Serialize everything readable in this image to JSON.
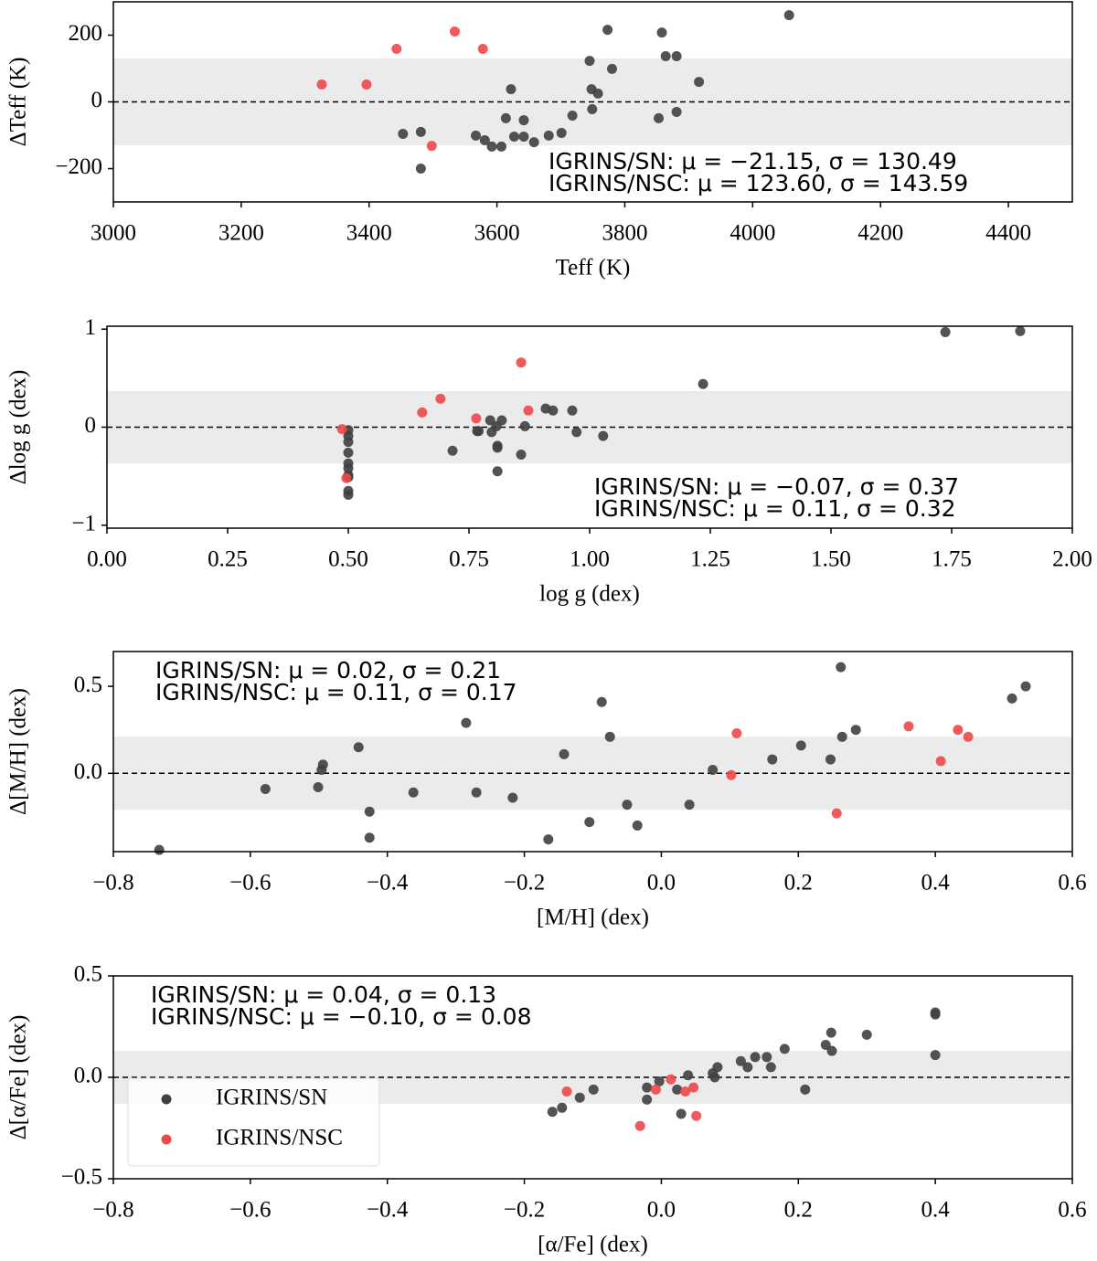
{
  "chart_data": [
    {
      "type": "scatter",
      "xlabel": "Teff (K)",
      "ylabel": "ΔTeff (K)",
      "xlim": [
        3000,
        4500
      ],
      "ylim": [
        -300,
        300
      ],
      "xticks": [
        3000,
        3200,
        3400,
        3600,
        3800,
        4000,
        4200,
        4400
      ],
      "yticks": [
        {
          "value": -200,
          "label": "−200"
        },
        0,
        200
      ],
      "band": 130.49,
      "hline": 0,
      "annotations": [
        {
          "text": "IGRINS/SN: μ = −21.15, σ = 130.49",
          "color": "#000000"
        },
        {
          "text": "IGRINS/NSC: μ = 123.60, σ = 143.59",
          "color": "#ff0000"
        }
      ],
      "series": [
        {
          "color": "#404040",
          "x": [
            3453,
            3481,
            3481,
            3567,
            3581,
            3592,
            3607,
            3614,
            3622,
            3627,
            3642,
            3642,
            3658,
            3681,
            3701,
            3718,
            3745,
            3748,
            3749,
            3758,
            3773,
            3780,
            3853,
            3858,
            3864,
            3881,
            3881,
            3916,
            4057
          ],
          "values": [
            -96,
            -90,
            -200,
            -101,
            -115,
            -134,
            -134,
            -49,
            38,
            -104,
            -55,
            -104,
            -121,
            -101,
            -93,
            -41,
            123,
            38,
            -22,
            25,
            216,
            99,
            -49,
            208,
            137,
            -30,
            137,
            60,
            260
          ]
        },
        {
          "color": "#f04848",
          "x": [
            3326,
            3396,
            3443,
            3498,
            3534,
            3578
          ],
          "values": [
            52,
            52,
            159,
            -132,
            211,
            159
          ]
        }
      ]
    },
    {
      "type": "scatter",
      "xlabel": "log g (dex)",
      "ylabel": "Δlog g (dex)",
      "xlim": [
        0,
        2
      ],
      "ylim": [
        -1.03,
        1.03
      ],
      "xticks": [
        {
          "value": 0,
          "label": "0.00"
        },
        0.25,
        {
          "value": 0.5,
          "label": "0.50"
        },
        0.75,
        {
          "value": 1,
          "label": "1.00"
        },
        1.25,
        {
          "value": 1.5,
          "label": "1.50"
        },
        1.75,
        {
          "value": 2,
          "label": "2.00"
        }
      ],
      "yticks": [
        {
          "value": -1,
          "label": "−1"
        },
        0,
        1
      ],
      "band": 0.37,
      "hline": 0,
      "annotations": [
        {
          "text": "IGRINS/SN: μ = −0.07, σ = 0.37",
          "color": "#000000"
        },
        {
          "text": "IGRINS/NSC: μ = 0.11, σ = 0.32",
          "color": "#ff0000"
        }
      ],
      "series": [
        {
          "color": "#404040",
          "x": [
            0.5,
            0.5,
            0.5,
            0.5,
            0.5,
            0.5,
            0.5,
            0.5,
            0.5,
            0.5,
            0.716,
            0.767,
            0.77,
            0.794,
            0.797,
            0.807,
            0.809,
            0.809,
            0.809,
            0.818,
            0.858,
            0.866,
            0.909,
            0.924,
            0.964,
            0.973,
            1.028,
            1.235,
            1.737,
            1.892
          ],
          "values": [
            -0.03,
            -0.09,
            -0.15,
            -0.26,
            -0.37,
            -0.42,
            -0.49,
            -0.51,
            -0.65,
            -0.69,
            -0.24,
            -0.04,
            -0.04,
            0.07,
            -0.05,
            0.01,
            -0.19,
            -0.21,
            -0.45,
            0.07,
            -0.28,
            0.01,
            0.19,
            0.17,
            0.17,
            -0.05,
            -0.09,
            0.44,
            0.97,
            0.98
          ]
        },
        {
          "color": "#f04848",
          "x": [
            0.487,
            0.496,
            0.653,
            0.691,
            0.765,
            0.858,
            0.873
          ],
          "values": [
            -0.02,
            -0.52,
            0.15,
            0.29,
            0.09,
            0.66,
            0.17
          ]
        }
      ]
    },
    {
      "type": "scatter",
      "xlabel": "[M/H] (dex)",
      "ylabel": "Δ[M/H] (dex)",
      "xlim": [
        -0.8,
        0.6
      ],
      "ylim": [
        -0.45,
        0.7
      ],
      "xticks": [
        {
          "value": -0.8,
          "label": "−0.8"
        },
        {
          "value": -0.6,
          "label": "−0.6"
        },
        {
          "value": -0.4,
          "label": "−0.4"
        },
        {
          "value": -0.2,
          "label": "−0.2"
        },
        {
          "value": 0,
          "label": "0.0"
        },
        0.2,
        0.4,
        0.6
      ],
      "yticks": [
        {
          "value": 0,
          "label": "0.0"
        },
        0.5
      ],
      "band": 0.21,
      "hline": 0,
      "annotations": [
        {
          "text": "IGRINS/SN: μ = 0.02, σ = 0.21",
          "color": "#000000"
        },
        {
          "text": "IGRINS/NSC: μ = 0.11, σ = 0.17",
          "color": "#ff0000"
        }
      ],
      "series": [
        {
          "color": "#404040",
          "x": [
            -0.733,
            -0.578,
            -0.501,
            -0.496,
            -0.494,
            -0.442,
            -0.426,
            -0.426,
            -0.362,
            -0.285,
            -0.27,
            -0.217,
            -0.165,
            -0.142,
            -0.105,
            -0.087,
            -0.075,
            -0.05,
            -0.035,
            0.041,
            0.075,
            0.162,
            0.204,
            0.247,
            0.264,
            0.262,
            0.284,
            0.512,
            0.532
          ],
          "values": [
            -0.44,
            -0.09,
            -0.08,
            0.02,
            0.05,
            0.15,
            -0.22,
            -0.37,
            -0.11,
            0.29,
            -0.11,
            -0.14,
            -0.38,
            0.11,
            -0.28,
            0.41,
            0.21,
            -0.18,
            -0.3,
            -0.18,
            0.02,
            0.08,
            0.16,
            0.08,
            0.21,
            0.61,
            0.25,
            0.43,
            0.5
          ]
        },
        {
          "color": "#f04848",
          "x": [
            0.102,
            0.11,
            0.256,
            0.361,
            0.408,
            0.433,
            0.448
          ],
          "values": [
            -0.01,
            0.23,
            -0.23,
            0.27,
            0.07,
            0.25,
            0.21
          ]
        }
      ]
    },
    {
      "type": "scatter",
      "xlabel": "[α/Fe] (dex)",
      "ylabel": "Δ[α/Fe] (dex)",
      "xlim": [
        -0.8,
        0.6
      ],
      "ylim": [
        -0.5,
        0.5
      ],
      "xticks": [
        {
          "value": -0.8,
          "label": "−0.8"
        },
        {
          "value": -0.6,
          "label": "−0.6"
        },
        {
          "value": -0.4,
          "label": "−0.4"
        },
        {
          "value": -0.2,
          "label": "−0.2"
        },
        {
          "value": 0,
          "label": "0.0"
        },
        0.2,
        0.4,
        0.6
      ],
      "yticks": [
        {
          "value": -0.5,
          "label": "−0.5"
        },
        {
          "value": 0,
          "label": "0.0"
        },
        0.5
      ],
      "band": 0.13,
      "hline": 0,
      "legend": "lower left",
      "annotations": [
        {
          "text": "IGRINS/SN: μ = 0.04, σ = 0.13",
          "color": "#000000"
        },
        {
          "text": "IGRINS/NSC: μ = −0.10, σ = 0.08",
          "color": "#ff0000"
        }
      ],
      "series": [
        {
          "name": "IGRINS/SN",
          "color": "#404040",
          "x": [
            -0.159,
            -0.145,
            -0.119,
            -0.099,
            -0.021,
            -0.021,
            -0.003,
            0.023,
            0.029,
            0.039,
            0.075,
            0.078,
            0.082,
            0.116,
            0.126,
            0.137,
            0.154,
            0.16,
            0.18,
            0.21,
            0.24,
            0.248,
            0.249,
            0.3,
            0.4,
            0.4,
            0.4
          ],
          "values": [
            -0.17,
            -0.15,
            -0.1,
            -0.06,
            -0.05,
            -0.11,
            -0.02,
            -0.06,
            -0.18,
            0.01,
            0.02,
            0,
            0.05,
            0.08,
            0.05,
            0.1,
            0.1,
            0.05,
            0.14,
            -0.06,
            0.16,
            0.22,
            0.13,
            0.21,
            0.32,
            0.31,
            0.11
          ]
        },
        {
          "name": "IGRINS/NSC",
          "color": "#f04848",
          "x": [
            -0.138,
            -0.031,
            -0.008,
            0.014,
            0.035,
            0.047,
            0.051
          ],
          "values": [
            -0.07,
            -0.24,
            -0.06,
            -0.01,
            -0.07,
            -0.05,
            -0.19
          ]
        }
      ]
    }
  ]
}
